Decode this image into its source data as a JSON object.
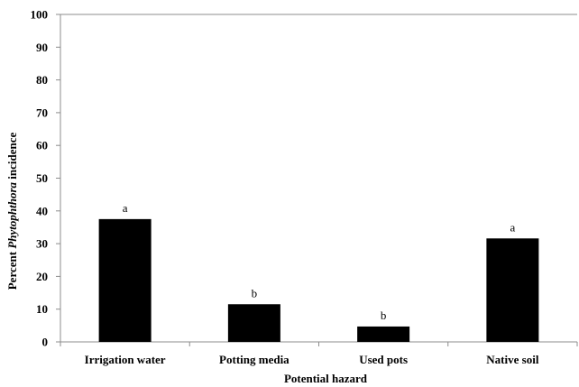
{
  "chart_data": {
    "type": "bar",
    "categories": [
      "Irrigation water",
      "Potting media",
      "Used pots",
      "Native soil"
    ],
    "values": [
      37.5,
      11.5,
      4.7,
      31.6
    ],
    "annotations": [
      "a",
      "b",
      "b",
      "a"
    ],
    "xlabel": "Potential hazard",
    "ylabel_prefix": "Percent ",
    "ylabel_italic": "Phytophthora",
    "ylabel_suffix": " incidence",
    "ylim": [
      0,
      100
    ],
    "ytick_step": 10,
    "grid": false,
    "legend": "none",
    "bar_color": "#000000",
    "axis_color": "#8c8c8c"
  }
}
